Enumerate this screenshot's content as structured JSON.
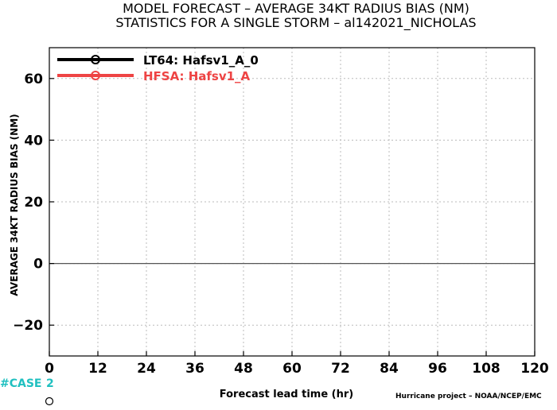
{
  "title_line1": "MODEL FORECAST – AVERAGE 34KT RADIUS BIAS (NM)",
  "title_line2": "STATISTICS FOR A SINGLE STORM – al142021_NICHOLAS",
  "case_label": "#CASE",
  "case_count": "2",
  "credit": "Hurricane project – NOAA/NCEP/EMC",
  "colors": {
    "axis": "#000000",
    "grid": "#bbbbbb",
    "zero_line": "#555555",
    "case": "#20c0c0"
  },
  "chart_data": {
    "type": "line",
    "xlabel": "Forecast lead time (hr)",
    "ylabel": "AVERAGE 34KT RADIUS BIAS (NM)",
    "xlim": [
      0,
      120
    ],
    "ylim": [
      -30,
      70
    ],
    "xticks": [
      0,
      12,
      24,
      36,
      48,
      60,
      72,
      84,
      96,
      108,
      120
    ],
    "yticks": [
      -20,
      0,
      20,
      40,
      60
    ],
    "grid": true,
    "legend_position": "top-left",
    "zero_line": 0,
    "series": [
      {
        "name": "LT64: Hafsv1_A_0",
        "color": "#000000",
        "marker": "circle",
        "values": []
      },
      {
        "name": "HFSA: Hafsv1_A",
        "color": "#ee4444",
        "marker": "circle",
        "values": []
      }
    ]
  }
}
